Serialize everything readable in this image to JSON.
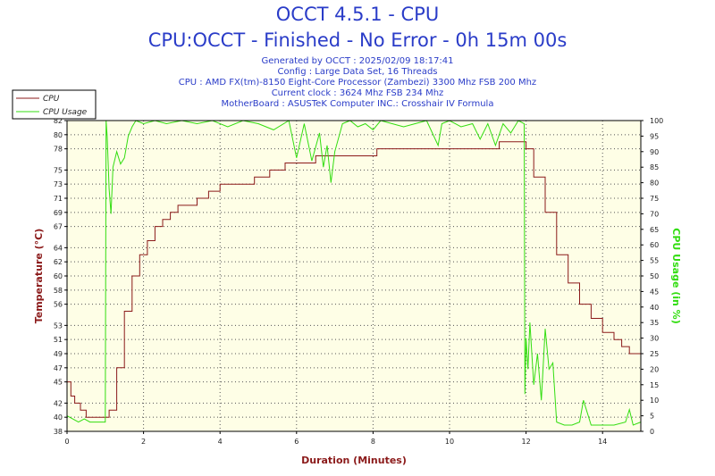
{
  "header": {
    "title": "OCCT 4.5.1 - CPU",
    "subtitle": "CPU:OCCT - Finished - No Error - 0h 15m 00s",
    "info_lines": [
      "Generated by OCCT : 2025/02/09 18:17:41",
      "Config : Large Data Set, 16 Threads",
      "CPU : AMD FX(tm)-8150 Eight-Core Processor (Zambezi) 3300 Mhz FSB 200 Mhz",
      "Current clock : 3624 Mhz FSB 234 Mhz",
      "MotherBoard : ASUSTeK Computer INC.: Crosshair IV Formula"
    ]
  },
  "colors": {
    "title": "#2a3cc8",
    "temperature": "#8b1a1a",
    "cpu_usage": "#33dd11",
    "plot_bg": "#fefee6",
    "grid": "#555555"
  },
  "chart_data": {
    "type": "line",
    "xlabel": "Duration (Minutes)",
    "ylabel_left": "Temperature (°C)",
    "ylabel_right": "CPU Usage (in %)",
    "xlim": [
      0,
      15
    ],
    "x_ticks": [
      0,
      2,
      4,
      6,
      8,
      10,
      12,
      14
    ],
    "ylim_left": [
      38,
      82
    ],
    "y_ticks_left": [
      38,
      40,
      42,
      45,
      47,
      49,
      51,
      53,
      56,
      58,
      60,
      62,
      64,
      67,
      69,
      71,
      73,
      75,
      78,
      80,
      82
    ],
    "ylim_right": [
      0,
      100
    ],
    "y_ticks_right": [
      0,
      5,
      10,
      15,
      20,
      25,
      30,
      35,
      40,
      45,
      50,
      55,
      60,
      65,
      70,
      75,
      80,
      85,
      90,
      95,
      100
    ],
    "grid": true,
    "legend_position": "top-left",
    "series": [
      {
        "name": "CPU",
        "axis": "left",
        "x": [
          0,
          0.1,
          0.2,
          0.35,
          0.5,
          0.7,
          1.0,
          1.05,
          1.1,
          1.3,
          1.5,
          1.7,
          1.9,
          2.1,
          2.3,
          2.5,
          2.7,
          2.9,
          3.1,
          3.4,
          3.7,
          4.0,
          4.2,
          4.5,
          4.9,
          5.3,
          5.7,
          6.1,
          6.5,
          7.2,
          8.0,
          8.1,
          8.3,
          8.8,
          9.5,
          10.2,
          10.8,
          11.3,
          11.7,
          11.95,
          12.0,
          12.2,
          12.5,
          12.8,
          13.1,
          13.4,
          13.7,
          14.0,
          14.3,
          14.5,
          14.7,
          15.0
        ],
        "y": [
          45,
          43,
          42,
          41,
          40,
          40,
          40,
          40,
          41,
          47,
          55,
          60,
          63,
          65,
          67,
          68,
          69,
          70,
          70,
          71,
          72,
          73,
          73,
          73,
          74,
          75,
          76,
          76,
          77,
          77,
          77,
          78,
          78,
          78,
          78,
          78,
          78,
          79,
          79,
          79,
          78,
          74,
          69,
          63,
          59,
          56,
          54,
          52,
          51,
          50,
          49,
          49
        ]
      },
      {
        "name": "CPU Usage",
        "axis": "right",
        "x": [
          0,
          0.15,
          0.3,
          0.45,
          0.6,
          0.8,
          0.95,
          1.0,
          1.02,
          1.05,
          1.1,
          1.15,
          1.2,
          1.3,
          1.4,
          1.5,
          1.6,
          1.7,
          1.8,
          2.0,
          2.3,
          2.6,
          3.0,
          3.4,
          3.8,
          4.2,
          4.6,
          5.0,
          5.4,
          5.8,
          6.0,
          6.2,
          6.4,
          6.6,
          6.7,
          6.8,
          6.9,
          7.0,
          7.2,
          7.4,
          7.6,
          7.8,
          8.0,
          8.2,
          8.5,
          8.8,
          9.1,
          9.4,
          9.7,
          9.8,
          10.0,
          10.3,
          10.6,
          10.8,
          11.0,
          11.2,
          11.4,
          11.6,
          11.8,
          11.95,
          11.97,
          12.0,
          12.05,
          12.1,
          12.2,
          12.3,
          12.4,
          12.5,
          12.6,
          12.7,
          12.8,
          13.0,
          13.2,
          13.4,
          13.5,
          13.7,
          14.0,
          14.3,
          14.6,
          14.7,
          14.8,
          15.0
        ],
        "y": [
          5,
          4,
          3,
          4,
          3,
          3,
          3,
          3,
          100,
          95,
          78,
          70,
          85,
          90,
          86,
          88,
          95,
          98,
          100,
          99,
          100,
          99,
          100,
          99,
          100,
          98,
          100,
          99,
          97,
          100,
          88,
          99,
          87,
          96,
          85,
          92,
          80,
          90,
          99,
          100,
          98,
          99,
          97,
          100,
          99,
          98,
          99,
          100,
          92,
          99,
          100,
          98,
          99,
          94,
          99,
          92,
          99,
          96,
          100,
          99,
          12,
          30,
          20,
          35,
          15,
          25,
          10,
          33,
          20,
          22,
          3,
          2,
          2,
          3,
          10,
          2,
          2,
          2,
          3,
          7,
          2,
          3
        ]
      }
    ]
  }
}
